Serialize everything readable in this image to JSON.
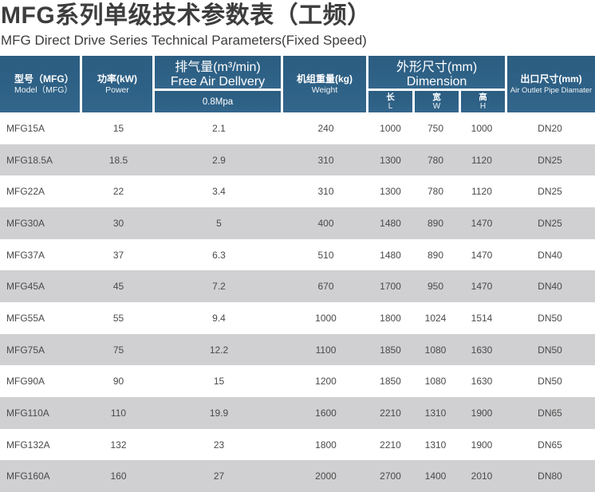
{
  "page": {
    "title": "MFG系列单级技术参数表（工频）",
    "subtitle": "MFG Direct Drive Series Technical Parameters(Fixed Speed)"
  },
  "table": {
    "header": {
      "model": {
        "zh": "型号（MFG）",
        "en": "Model（MFG）"
      },
      "power": {
        "zh": "功率(kW)",
        "en": "Power"
      },
      "fad": {
        "zh": "排气量(m³/min)",
        "en": "Free Air Dellvery",
        "pressure": "0.8Mpa"
      },
      "weight": {
        "zh": "机组重量(kg)",
        "en": "Weight"
      },
      "dimension": {
        "zh": "外形尺寸(mm)",
        "en": "Dimension",
        "subs": [
          {
            "zh": "长",
            "en": "L"
          },
          {
            "zh": "宽",
            "en": "W"
          },
          {
            "zh": "高",
            "en": "H"
          }
        ]
      },
      "outlet": {
        "zh": "出口尺寸(mm)",
        "en": "Air Outlet Pipe Diamater"
      }
    },
    "rows": [
      [
        "MFG15A",
        "15",
        "2.1",
        "240",
        "1000",
        "750",
        "1000",
        "DN20"
      ],
      [
        "MFG18.5A",
        "18.5",
        "2.9",
        "310",
        "1300",
        "780",
        "1120",
        "DN25"
      ],
      [
        "MFG22A",
        "22",
        "3.4",
        "310",
        "1300",
        "780",
        "1120",
        "DN25"
      ],
      [
        "MFG30A",
        "30",
        "5",
        "400",
        "1480",
        "890",
        "1470",
        "DN25"
      ],
      [
        "MFG37A",
        "37",
        "6.3",
        "510",
        "1480",
        "890",
        "1470",
        "DN40"
      ],
      [
        "MFG45A",
        "45",
        "7.2",
        "670",
        "1700",
        "950",
        "1470",
        "DN40"
      ],
      [
        "MFG55A",
        "55",
        "9.4",
        "1000",
        "1800",
        "1024",
        "1514",
        "DN50"
      ],
      [
        "MFG75A",
        "75",
        "12.2",
        "1100",
        "1850",
        "1080",
        "1630",
        "DN50"
      ],
      [
        "MFG90A",
        "90",
        "15",
        "1200",
        "1850",
        "1080",
        "1630",
        "DN50"
      ],
      [
        "MFG110A",
        "110",
        "19.9",
        "1600",
        "2210",
        "1310",
        "1900",
        "DN65"
      ],
      [
        "MFG132A",
        "132",
        "23",
        "1800",
        "2210",
        "1310",
        "1900",
        "DN65"
      ],
      [
        "MFG160A",
        "160",
        "27",
        "2000",
        "2700",
        "1400",
        "2010",
        "DN80"
      ]
    ]
  },
  "colors": {
    "header_blue": "#2e6186",
    "stripe_gray": "#d0d0d2"
  }
}
